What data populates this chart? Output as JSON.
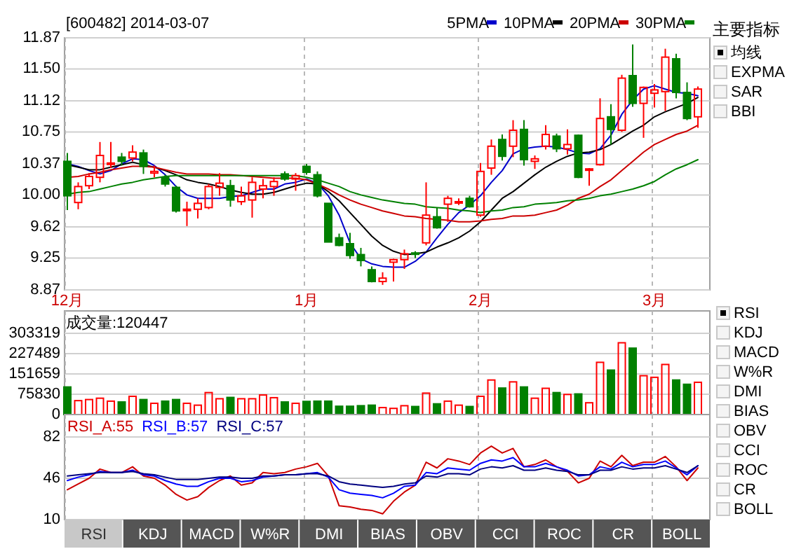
{
  "chart_data": [
    {
      "type": "candlestick",
      "title": "[600482] 2014-03-07",
      "categories": [
        "12月",
        null,
        null,
        null,
        null,
        null,
        null,
        null,
        null,
        null,
        null,
        null,
        null,
        null,
        null,
        null,
        null,
        null,
        null,
        null,
        null,
        null,
        "1月",
        null,
        null,
        null,
        null,
        null,
        null,
        null,
        null,
        null,
        null,
        null,
        null,
        null,
        null,
        null,
        "2月",
        null,
        null,
        null,
        null,
        null,
        null,
        null,
        null,
        null,
        null,
        null,
        null,
        null,
        null,
        null,
        "3月",
        null,
        null,
        null,
        null
      ],
      "ohlc": [
        [
          10.4,
          10.5,
          9.82,
          9.99
        ],
        [
          9.91,
          10.15,
          9.83,
          10.1
        ],
        [
          10.11,
          10.26,
          10.07,
          10.22
        ],
        [
          10.21,
          10.63,
          10.15,
          10.47
        ],
        [
          10.38,
          10.63,
          10.32,
          10.38
        ],
        [
          10.45,
          10.5,
          10.35,
          10.4
        ],
        [
          10.44,
          10.59,
          10.4,
          10.51
        ],
        [
          10.5,
          10.54,
          10.25,
          10.34
        ],
        [
          10.26,
          10.35,
          10.21,
          10.28
        ],
        [
          10.21,
          10.24,
          10.1,
          10.13
        ],
        [
          10.09,
          10.11,
          9.79,
          9.81
        ],
        [
          9.82,
          9.92,
          9.63,
          9.83
        ],
        [
          9.83,
          9.96,
          9.72,
          9.9
        ],
        [
          9.85,
          10.13,
          9.83,
          10.1
        ],
        [
          10.09,
          10.26,
          9.99,
          10.14
        ],
        [
          10.11,
          10.18,
          9.86,
          9.94
        ],
        [
          9.92,
          10.1,
          9.88,
          9.99
        ],
        [
          9.94,
          10.21,
          9.73,
          10.15
        ],
        [
          10.07,
          10.19,
          9.96,
          10.11
        ],
        [
          10.1,
          10.21,
          9.99,
          10.16
        ],
        [
          10.25,
          10.28,
          10.17,
          10.19
        ],
        [
          10.19,
          10.26,
          10.05,
          10.23
        ],
        [
          10.34,
          10.37,
          10.24,
          10.27
        ],
        [
          10.24,
          10.28,
          9.97,
          9.99
        ],
        [
          9.9,
          9.9,
          9.44,
          9.44
        ],
        [
          9.49,
          9.54,
          9.39,
          9.4
        ],
        [
          9.42,
          9.55,
          9.24,
          9.28
        ],
        [
          9.29,
          9.37,
          9.15,
          9.22
        ],
        [
          9.11,
          9.15,
          8.96,
          8.97
        ],
        [
          8.97,
          9.08,
          8.93,
          9.01
        ],
        [
          9.2,
          9.24,
          8.97,
          9.23
        ],
        [
          9.23,
          9.35,
          9.12,
          9.3
        ],
        [
          9.31,
          9.33,
          9.25,
          9.3
        ],
        [
          9.43,
          10.15,
          9.4,
          9.76
        ],
        [
          9.74,
          9.85,
          9.6,
          9.61
        ],
        [
          9.89,
          9.99,
          9.68,
          9.96
        ],
        [
          9.91,
          9.96,
          9.88,
          9.92
        ],
        [
          9.96,
          9.99,
          9.85,
          9.86
        ],
        [
          9.76,
          10.38,
          9.74,
          10.28
        ],
        [
          10.32,
          10.66,
          10.24,
          10.58
        ],
        [
          10.66,
          10.72,
          10.41,
          10.46
        ],
        [
          10.58,
          10.89,
          10.45,
          10.77
        ],
        [
          10.78,
          10.89,
          10.35,
          10.42
        ],
        [
          10.4,
          10.47,
          10.31,
          10.43
        ],
        [
          10.58,
          10.83,
          10.54,
          10.72
        ],
        [
          10.7,
          10.73,
          10.51,
          10.55
        ],
        [
          10.55,
          10.78,
          10.48,
          10.6
        ],
        [
          10.71,
          10.72,
          10.2,
          10.21
        ],
        [
          10.3,
          10.32,
          10.11,
          10.31
        ],
        [
          10.36,
          11.15,
          10.35,
          10.91
        ],
        [
          10.93,
          11.08,
          10.6,
          10.78
        ],
        [
          10.77,
          11.43,
          10.75,
          11.39
        ],
        [
          11.42,
          11.79,
          11.05,
          11.09
        ],
        [
          11.09,
          11.29,
          10.68,
          11.28
        ],
        [
          11.21,
          11.32,
          11.04,
          11.25
        ],
        [
          11.23,
          11.74,
          11.0,
          11.64
        ],
        [
          11.62,
          11.68,
          11.15,
          11.22
        ],
        [
          11.22,
          11.34,
          10.89,
          10.91
        ],
        [
          10.93,
          11.29,
          10.8,
          11.26
        ]
      ],
      "series": [
        {
          "name": "5PMA",
          "type": "line",
          "color": "#0000cc",
          "values": [
            10.37,
            10.34,
            10.29,
            10.25,
            10.29,
            10.37,
            10.43,
            10.42,
            10.35,
            10.24,
            10.1,
            10.0,
            9.96,
            9.96,
            9.96,
            9.98,
            9.99,
            10.03,
            10.07,
            10.07,
            10.13,
            10.15,
            10.19,
            10.14,
            9.99,
            9.76,
            9.43,
            9.24,
            9.18,
            9.15,
            9.14,
            9.14,
            9.21,
            9.32,
            9.49,
            9.65,
            9.79,
            9.88,
            9.99,
            10.15,
            10.29,
            10.49,
            10.55,
            10.57,
            10.58,
            10.57,
            10.54,
            10.5,
            10.49,
            10.55,
            10.71,
            10.96,
            11.13,
            11.26,
            11.3,
            11.26,
            11.22,
            11.21,
            11.18
          ]
        },
        {
          "name": "10PMA",
          "type": "line",
          "color": "#000000",
          "values": [
            10.36,
            10.33,
            10.3,
            10.3,
            10.33,
            10.36,
            10.39,
            10.36,
            10.33,
            10.29,
            10.24,
            10.18,
            10.15,
            10.13,
            10.1,
            10.06,
            10.03,
            10.01,
            10.01,
            10.03,
            10.07,
            10.11,
            10.14,
            10.13,
            10.04,
            9.93,
            9.79,
            9.65,
            9.51,
            9.4,
            9.33,
            9.29,
            9.3,
            9.32,
            9.38,
            9.43,
            9.49,
            9.57,
            9.68,
            9.82,
            9.96,
            10.04,
            10.14,
            10.24,
            10.33,
            10.4,
            10.46,
            10.5,
            10.51,
            10.54,
            10.6,
            10.68,
            10.76,
            10.83,
            10.93,
            10.99,
            11.04,
            11.09,
            11.16
          ]
        },
        {
          "name": "20PMA",
          "type": "line",
          "color": "#cc0000",
          "values": [
            10.21,
            10.22,
            10.25,
            10.27,
            10.3,
            10.32,
            10.34,
            10.34,
            10.33,
            10.3,
            10.27,
            10.25,
            10.25,
            10.25,
            10.24,
            10.24,
            10.23,
            10.22,
            10.21,
            10.2,
            10.2,
            10.2,
            10.18,
            10.13,
            10.07,
            10.0,
            9.94,
            9.89,
            9.85,
            9.81,
            9.78,
            9.75,
            9.74,
            9.72,
            9.71,
            9.7,
            9.68,
            9.68,
            9.69,
            9.71,
            9.72,
            9.75,
            9.75,
            9.76,
            9.79,
            9.82,
            9.88,
            9.96,
            10.01,
            10.1,
            10.18,
            10.29,
            10.4,
            10.51,
            10.6,
            10.66,
            10.72,
            10.76,
            10.83
          ]
        },
        {
          "name": "30PMA",
          "type": "line",
          "color": "#008000",
          "values": [
            10.01,
            10.03,
            10.04,
            10.07,
            10.1,
            10.13,
            10.15,
            10.18,
            10.2,
            10.22,
            10.23,
            10.23,
            10.23,
            10.23,
            10.23,
            10.23,
            10.23,
            10.23,
            10.23,
            10.23,
            10.23,
            10.23,
            10.21,
            10.18,
            10.14,
            10.1,
            10.04,
            10.0,
            9.97,
            9.94,
            9.92,
            9.9,
            9.89,
            9.86,
            9.85,
            9.84,
            9.82,
            9.81,
            9.79,
            9.81,
            9.82,
            9.85,
            9.86,
            9.89,
            9.9,
            9.91,
            9.93,
            9.94,
            9.96,
            9.99,
            10.01,
            10.04,
            10.07,
            10.11,
            10.16,
            10.24,
            10.31,
            10.36,
            10.42
          ]
        }
      ],
      "ylim": [
        8.87,
        11.87
      ],
      "yticks": [
        8.87,
        9.25,
        9.62,
        {
          "value": 10,
          "label": "10.00"
        },
        10.37,
        10.75,
        11.12,
        {
          "value": 11.5,
          "label": "11.50"
        },
        11.87
      ],
      "grid": true,
      "legend": "top right"
    },
    {
      "type": "bar",
      "title": "成交量:120447",
      "categories": [
        null,
        null,
        null,
        null,
        null,
        null,
        null,
        null,
        null,
        null,
        null,
        null,
        null,
        null,
        null,
        null,
        null,
        null,
        null,
        null,
        null,
        null,
        null,
        null,
        null,
        null,
        null,
        null,
        null,
        null,
        null,
        null,
        null,
        null,
        null,
        null,
        null,
        null,
        null,
        null,
        null,
        null,
        null,
        null,
        null,
        null,
        null,
        null,
        null,
        null,
        null,
        null,
        null,
        null,
        null,
        null,
        null,
        null,
        null
      ],
      "values": [
        103000,
        52000,
        56000,
        61000,
        50000,
        47000,
        68000,
        56000,
        42000,
        50000,
        56000,
        42000,
        35000,
        82000,
        59000,
        64000,
        59000,
        59000,
        73000,
        63000,
        47000,
        42000,
        49000,
        50000,
        50000,
        31000,
        31000,
        33000,
        35000,
        26000,
        23000,
        33000,
        30000,
        80000,
        40000,
        50000,
        35000,
        30000,
        68000,
        129000,
        99000,
        122000,
        103000,
        61000,
        98000,
        82000,
        75000,
        77000,
        44000,
        195000,
        166000,
        268000,
        248000,
        145000,
        139000,
        187000,
        129000,
        113000,
        120447
      ],
      "colors": [
        "#008000",
        "#ff0000",
        "#ff0000",
        "#ff0000",
        "#ff0000",
        "#008000",
        "#ff0000",
        "#008000",
        "#ff0000",
        "#008000",
        "#008000",
        "#ff0000",
        "#ff0000",
        "#ff0000",
        "#ff0000",
        "#008000",
        "#ff0000",
        "#ff0000",
        "#ff0000",
        "#ff0000",
        "#008000",
        "#ff0000",
        "#008000",
        "#008000",
        "#008000",
        "#008000",
        "#008000",
        "#008000",
        "#008000",
        "#ff0000",
        "#ff0000",
        "#ff0000",
        "#008000",
        "#ff0000",
        "#008000",
        "#ff0000",
        "#ff0000",
        "#008000",
        "#ff0000",
        "#ff0000",
        "#008000",
        "#ff0000",
        "#008000",
        "#ff0000",
        "#ff0000",
        "#008000",
        "#ff0000",
        "#008000",
        "#ff0000",
        "#ff0000",
        "#008000",
        "#ff0000",
        "#008000",
        "#ff0000",
        "#ff0000",
        "#ff0000",
        "#008000",
        "#008000",
        "#ff0000"
      ],
      "ylim": [
        0,
        303319
      ],
      "yticks": [
        0,
        75830,
        151659,
        227489,
        303319
      ],
      "grid": true,
      "tick_labels": "y"
    },
    {
      "type": "line",
      "categories": [
        null,
        null,
        null,
        null,
        null,
        null,
        null,
        null,
        null,
        null,
        null,
        null,
        null,
        null,
        null,
        null,
        null,
        null,
        null,
        null,
        null,
        null,
        null,
        null,
        null,
        null,
        null,
        null,
        null,
        null,
        null,
        null,
        null,
        null,
        null,
        null,
        null,
        null,
        null,
        null,
        null,
        null,
        null,
        null,
        null,
        null,
        null,
        null,
        null,
        null,
        null,
        null,
        null,
        null,
        null,
        null,
        null,
        null,
        null
      ],
      "series": [
        {
          "name": "RSI_A:55",
          "color": "#cc0000",
          "values": [
            36,
            41,
            46,
            54,
            51,
            51,
            56,
            48,
            46,
            40,
            32,
            27,
            30,
            38,
            44,
            48,
            40,
            42,
            51,
            50,
            51,
            54,
            56,
            59,
            48,
            22,
            21,
            19,
            18,
            15,
            26,
            34,
            40,
            60,
            55,
            63,
            61,
            58,
            68,
            74,
            68,
            72,
            56,
            58,
            62,
            56,
            52,
            42,
            46,
            61,
            56,
            66,
            57,
            60,
            60,
            65,
            56,
            44,
            55
          ]
        },
        {
          "name": "RSI_B:57",
          "color": "#0000ff",
          "values": [
            44,
            47,
            49,
            52,
            51,
            51,
            53,
            49,
            48,
            44,
            41,
            39,
            39,
            43,
            46,
            46,
            43,
            44,
            47,
            48,
            49,
            49,
            50,
            51,
            47,
            36,
            33,
            32,
            31,
            29,
            33,
            39,
            40,
            51,
            50,
            55,
            54,
            53,
            59,
            62,
            61,
            64,
            56,
            56,
            59,
            56,
            53,
            48,
            49,
            56,
            54,
            60,
            56,
            58,
            58,
            61,
            55,
            49,
            57
          ]
        },
        {
          "name": "RSI_C:57",
          "color": "#000080",
          "values": [
            48,
            49,
            50,
            51,
            51,
            51,
            52,
            50,
            49,
            47,
            45,
            45,
            45,
            46,
            47,
            47,
            46,
            46,
            48,
            48,
            49,
            49,
            50,
            50,
            48,
            43,
            41,
            40,
            39,
            38,
            39,
            41,
            42,
            48,
            47,
            50,
            50,
            49,
            54,
            56,
            55,
            57,
            53,
            53,
            55,
            53,
            52,
            49,
            49,
            53,
            53,
            56,
            54,
            55,
            55,
            57,
            54,
            51,
            57
          ]
        }
      ],
      "ylim": [
        10,
        82
      ],
      "yticks": [
        10,
        46,
        82
      ],
      "grid": true,
      "ref_lines": [
        {
          "axis": "y",
          "value": 46,
          "color": "#c8c8c8"
        }
      ],
      "legend": "top left",
      "tick_labels": "y"
    },
    {
      "type": "other",
      "title": "主要指标",
      "annotations": [
        "均线",
        "EXPMA",
        "SAR",
        "BBI"
      ]
    },
    {
      "type": "other",
      "annotations": [
        "RSI",
        "KDJ",
        "MACD",
        "W%R",
        "DMI",
        "BIAS",
        "OBV",
        "CCI",
        "ROC",
        "CR",
        "BOLL"
      ]
    },
    {
      "type": "other",
      "annotations": [
        "RSI",
        "KDJ",
        "MACD",
        "W%R",
        "DMI",
        "BIAS",
        "OBV",
        "CCI",
        "ROC",
        "CR",
        "BOLL"
      ]
    }
  ]
}
